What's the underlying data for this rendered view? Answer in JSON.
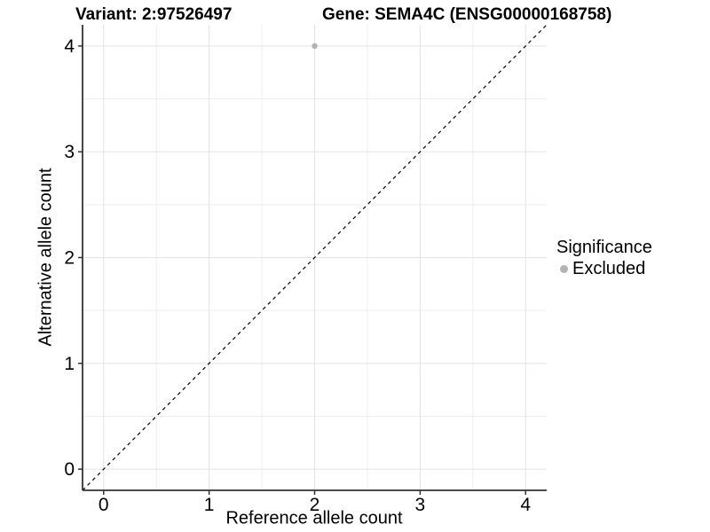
{
  "header": {
    "variant_title": "Variant: 2:97526497",
    "gene_title": "Gene: SEMA4C (ENSG00000168758)"
  },
  "chart_data": {
    "type": "scatter",
    "xlabel": "Reference allele count",
    "ylabel": "Alternative allele count",
    "xlim": [
      -0.2,
      4.2
    ],
    "ylim": [
      -0.2,
      4.2
    ],
    "x_ticks": [
      0,
      1,
      2,
      3,
      4
    ],
    "y_ticks": [
      0,
      1,
      2,
      3,
      4
    ],
    "x_minor_gridlines": [
      0.5,
      1.5,
      2.5,
      3.5
    ],
    "y_minor_gridlines": [
      0.5,
      1.5,
      2.5,
      3.5
    ],
    "grid": true,
    "points": [
      {
        "x": 2,
        "y": 4,
        "significance": "Excluded"
      }
    ],
    "reference_line": {
      "description": "identity line y = x",
      "style": "dashed",
      "color": "#000000"
    },
    "legend": {
      "title": "Significance",
      "position": "right",
      "entries": [
        {
          "label": "Excluded",
          "color": "#b3b3b3"
        }
      ]
    },
    "colors": {
      "point_excluded": "#b3b3b3",
      "grid_major": "#e3e3e3",
      "grid_minor": "#eeeeee",
      "axis_line": "#333333",
      "tick_text": "#000000",
      "background": "#ffffff"
    }
  }
}
